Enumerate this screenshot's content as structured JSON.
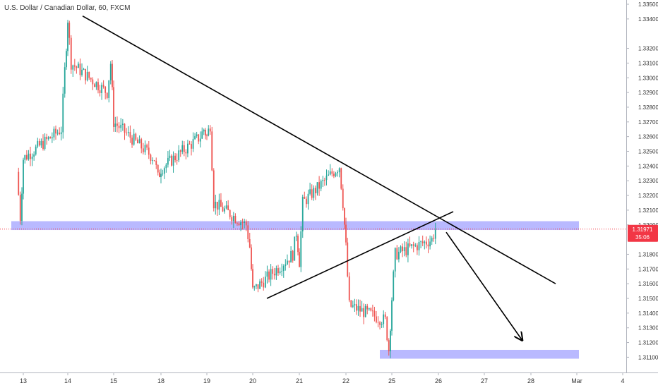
{
  "header": {
    "title": "U.S. Dollar / Canadian Dollar, 60, FXCM"
  },
  "price_axis": {
    "ticks": [
      "1.33500",
      "1.33400",
      "1.33200",
      "1.33100",
      "1.33000",
      "1.32900",
      "1.32800",
      "1.32700",
      "1.32600",
      "1.32500",
      "1.32400",
      "1.32300",
      "1.32200",
      "1.32100",
      "1.32000",
      "1.31800",
      "1.31700",
      "1.31600",
      "1.31500",
      "1.31400",
      "1.31300",
      "1.31200",
      "1.31100"
    ],
    "tick_values": [
      1.335,
      1.334,
      1.332,
      1.331,
      1.33,
      1.329,
      1.328,
      1.327,
      1.326,
      1.325,
      1.324,
      1.323,
      1.322,
      1.321,
      1.32,
      1.318,
      1.317,
      1.316,
      1.315,
      1.314,
      1.313,
      1.312,
      1.311
    ]
  },
  "time_axis": {
    "labels": [
      "13",
      "14",
      "15",
      "18",
      "19",
      "20",
      "21",
      "22",
      "25",
      "26",
      "27",
      "28",
      "Mar",
      "4"
    ]
  },
  "current_price": {
    "label": "1.31971",
    "countdown": "35:06",
    "value": 1.31971,
    "color": "#f23645"
  },
  "colors": {
    "up": "#26a69a",
    "down": "#ef5350",
    "zone": "#6464ff",
    "line": "#000000"
  },
  "chart_data": {
    "type": "candlestick",
    "title": "U.S. Dollar / Canadian Dollar, 60, FXCM",
    "symbol": "USDCAD",
    "interval": "60",
    "source": "FXCM",
    "ylim": [
      1.3103,
      1.3355
    ],
    "x_ticks": [
      "13",
      "14",
      "15",
      "18",
      "19",
      "20",
      "21",
      "22",
      "25",
      "26",
      "27",
      "28",
      "Mar",
      "4"
    ],
    "key_points": [
      {
        "x": "13",
        "close": 1.3236
      },
      {
        "x": "13",
        "close": 1.3205
      },
      {
        "x": "13",
        "close": 1.3245
      },
      {
        "x": "14",
        "close": 1.3265
      },
      {
        "x": "14",
        "close": 1.3305
      },
      {
        "x": "14",
        "close": 1.334
      },
      {
        "x": "14",
        "close": 1.331
      },
      {
        "x": "15",
        "close": 1.329
      },
      {
        "x": "15",
        "close": 1.331
      },
      {
        "x": "15",
        "close": 1.327
      },
      {
        "x": "18",
        "close": 1.3245
      },
      {
        "x": "18",
        "close": 1.3232
      },
      {
        "x": "18",
        "close": 1.3238
      },
      {
        "x": "19",
        "close": 1.326
      },
      {
        "x": "19",
        "close": 1.3265
      },
      {
        "x": "19",
        "close": 1.326
      },
      {
        "x": "19",
        "close": 1.3268
      },
      {
        "x": "19",
        "close": 1.3215
      },
      {
        "x": "20",
        "close": 1.32
      },
      {
        "x": "20",
        "close": 1.3185
      },
      {
        "x": "20",
        "close": 1.3155
      },
      {
        "x": "21",
        "close": 1.318
      },
      {
        "x": "21",
        "close": 1.3195
      },
      {
        "x": "21",
        "close": 1.3175
      },
      {
        "x": "21",
        "close": 1.3215
      },
      {
        "x": "22",
        "close": 1.324
      },
      {
        "x": "22",
        "close": 1.3215
      },
      {
        "x": "22",
        "close": 1.3185
      },
      {
        "x": "22",
        "close": 1.3145
      },
      {
        "x": "25",
        "close": 1.3135
      },
      {
        "x": "25",
        "close": 1.3115
      },
      {
        "x": "25",
        "close": 1.315
      },
      {
        "x": "25",
        "close": 1.318
      },
      {
        "x": "26",
        "close": 1.319
      },
      {
        "x": "26",
        "close": 1.3197
      }
    ],
    "zones": [
      {
        "name": "resistance zone",
        "from_x": "13",
        "to_x": "27",
        "low": 1.31965,
        "high": 1.32025
      },
      {
        "name": "target zone",
        "from_x": "25",
        "to_x": "28",
        "low": 1.3109,
        "high": 1.3115
      }
    ],
    "trendlines": [
      {
        "name": "descending trendline",
        "from": {
          "x": "14",
          "y": 1.3342
        },
        "to": {
          "x": "28",
          "y": 1.316
        }
      },
      {
        "name": "ascending trendline",
        "from": {
          "x": "20",
          "y": 1.315
        },
        "to": {
          "x": "26",
          "y": 1.3209
        }
      },
      {
        "name": "projection arrow",
        "from": {
          "x": "26",
          "y": 1.3195
        },
        "to": {
          "x": "28",
          "y": 1.3122
        }
      }
    ],
    "current_price": 1.31971,
    "grid": false
  }
}
